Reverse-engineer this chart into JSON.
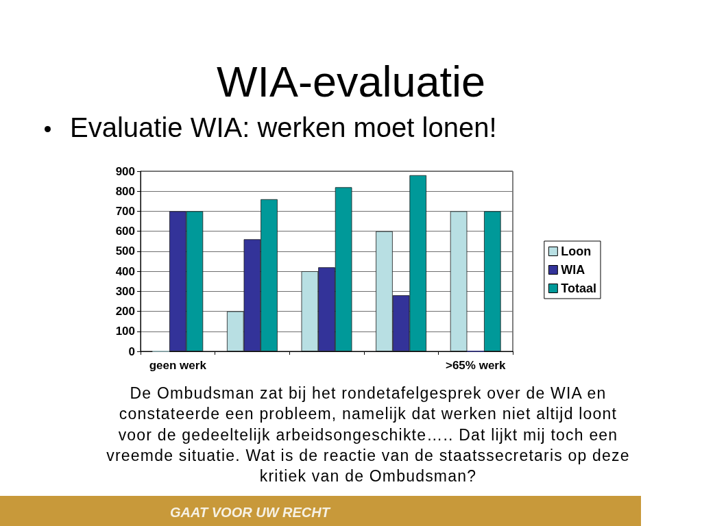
{
  "chart_data": {
    "type": "bar",
    "title": "WIA-evaluatie",
    "subtitle": "Evaluatie WIA: werken moet lonen!",
    "categories": [
      "geen werk",
      null,
      null,
      null,
      ">65% werk"
    ],
    "series": [
      {
        "name": "Loon",
        "color": "#b8dfe3",
        "values": [
          0,
          200,
          400,
          600,
          700
        ]
      },
      {
        "name": "WIA",
        "color": "#333399",
        "values": [
          700,
          560,
          420,
          280,
          0
        ]
      },
      {
        "name": "Totaal",
        "color": "#009999",
        "values": [
          700,
          760,
          820,
          880,
          700
        ]
      }
    ],
    "ylim": [
      0,
      900
    ],
    "yticks": [
      0,
      100,
      200,
      300,
      400,
      500,
      600,
      700,
      800,
      900
    ],
    "grid": "y",
    "legend": "right",
    "annotations": [
      "De Ombudsman zat bij het rondetafelgesprek over de WIA en constateerde een probleem, namelijk dat werken niet altijd loont voor de gedeeltelijk arbeidsongeschikte….. Dat lijkt mij toch een vreemde situatie. Wat is de reactie van de staatssecretaris op deze kritiek van de Ombudsman?",
      "GAAT VOOR UW RECHT"
    ]
  }
}
